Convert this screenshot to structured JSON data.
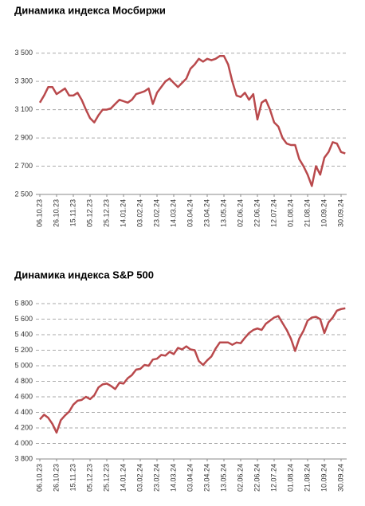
{
  "chart_data": [
    {
      "type": "line",
      "title": "Динамика индекса Мосбиржи",
      "color": "#b9494c",
      "categories": [
        "06.10.23",
        null,
        null,
        null,
        "26.10.23",
        null,
        null,
        null,
        "15.11.23",
        null,
        null,
        null,
        "05.12.23",
        null,
        null,
        null,
        "25.12.23",
        null,
        null,
        null,
        "14.01.24",
        null,
        null,
        null,
        "03.02.24",
        null,
        null,
        null,
        "23.02.24",
        null,
        null,
        null,
        "14.03.24",
        null,
        null,
        null,
        "03.04.24",
        null,
        null,
        null,
        "23.04.24",
        null,
        null,
        null,
        "13.05.24",
        null,
        null,
        null,
        "02.06.24",
        null,
        null,
        null,
        "22.06.24",
        null,
        null,
        null,
        "12.07.24",
        null,
        null,
        null,
        "01.08.24",
        null,
        null,
        null,
        "21.08.24",
        null,
        null,
        null,
        "10.09.24",
        null,
        null,
        null,
        "30.09.24",
        null
      ],
      "values": [
        3150,
        3200,
        3260,
        3260,
        3210,
        3230,
        3250,
        3200,
        3200,
        3220,
        3170,
        3100,
        3040,
        3010,
        3060,
        3100,
        3100,
        3110,
        3140,
        3170,
        3160,
        3150,
        3170,
        3210,
        3220,
        3230,
        3250,
        3140,
        3220,
        3260,
        3300,
        3320,
        3290,
        3260,
        3290,
        3320,
        3390,
        3420,
        3460,
        3440,
        3460,
        3450,
        3460,
        3480,
        3480,
        3420,
        3300,
        3200,
        3190,
        3220,
        3170,
        3210,
        3030,
        3150,
        3170,
        3100,
        3010,
        2980,
        2900,
        2860,
        2850,
        2850,
        2750,
        2700,
        2640,
        2560,
        2700,
        2640,
        2760,
        2800,
        2870,
        2860,
        2800,
        2790
      ],
      "ylim": [
        2500,
        3600
      ],
      "yticks": [
        {
          "value": 2500,
          "label": "2 500"
        },
        {
          "value": 2700,
          "label": "2 700"
        },
        {
          "value": 2900,
          "label": "2 900"
        },
        {
          "value": 3100,
          "label": "3 100"
        },
        {
          "value": 3300,
          "label": "3 300"
        },
        {
          "value": 3500,
          "label": "3 500"
        }
      ],
      "grid": true
    },
    {
      "type": "line",
      "title": "Динамика индекса S&P 500",
      "color": "#b9494c",
      "categories": [
        "06.10.23",
        null,
        null,
        null,
        "26.10.23",
        null,
        null,
        null,
        "15.11.23",
        null,
        null,
        null,
        "05.12.23",
        null,
        null,
        null,
        "25.12.23",
        null,
        null,
        null,
        "14.01.24",
        null,
        null,
        null,
        "03.02.24",
        null,
        null,
        null,
        "23.02.24",
        null,
        null,
        null,
        "14.03.24",
        null,
        null,
        null,
        "03.04.24",
        null,
        null,
        null,
        "23.04.24",
        null,
        null,
        null,
        "13.05.24",
        null,
        null,
        null,
        "02.06.24",
        null,
        null,
        null,
        "22.06.24",
        null,
        null,
        null,
        "12.07.24",
        null,
        null,
        null,
        "01.08.24",
        null,
        null,
        null,
        "21.08.24",
        null,
        null,
        null,
        "10.09.24",
        null,
        null,
        null,
        "30.09.24",
        null
      ],
      "values": [
        4310,
        4370,
        4330,
        4250,
        4140,
        4300,
        4360,
        4410,
        4500,
        4550,
        4560,
        4600,
        4570,
        4620,
        4720,
        4760,
        4770,
        4740,
        4700,
        4780,
        4770,
        4840,
        4880,
        4950,
        4960,
        5010,
        5000,
        5080,
        5090,
        5140,
        5130,
        5180,
        5150,
        5230,
        5210,
        5250,
        5210,
        5200,
        5060,
        5010,
        5070,
        5120,
        5220,
        5300,
        5300,
        5300,
        5270,
        5300,
        5290,
        5360,
        5420,
        5460,
        5480,
        5460,
        5540,
        5580,
        5620,
        5640,
        5550,
        5460,
        5350,
        5190,
        5350,
        5450,
        5580,
        5620,
        5630,
        5600,
        5420,
        5560,
        5620,
        5710,
        5730,
        5740
      ],
      "ylim": [
        3800,
        5800
      ],
      "yticks": [
        {
          "value": 3800,
          "label": "3 800"
        },
        {
          "value": 4000,
          "label": "4 000"
        },
        {
          "value": 4200,
          "label": "4 200"
        },
        {
          "value": 4400,
          "label": "4 400"
        },
        {
          "value": 4600,
          "label": "4 600"
        },
        {
          "value": 4800,
          "label": "4 800"
        },
        {
          "value": 5000,
          "label": "5 000"
        },
        {
          "value": 5200,
          "label": "5 200"
        },
        {
          "value": 5400,
          "label": "5 400"
        },
        {
          "value": 5600,
          "label": "5 600"
        },
        {
          "value": 5800,
          "label": "5 800"
        }
      ],
      "grid": true
    }
  ]
}
